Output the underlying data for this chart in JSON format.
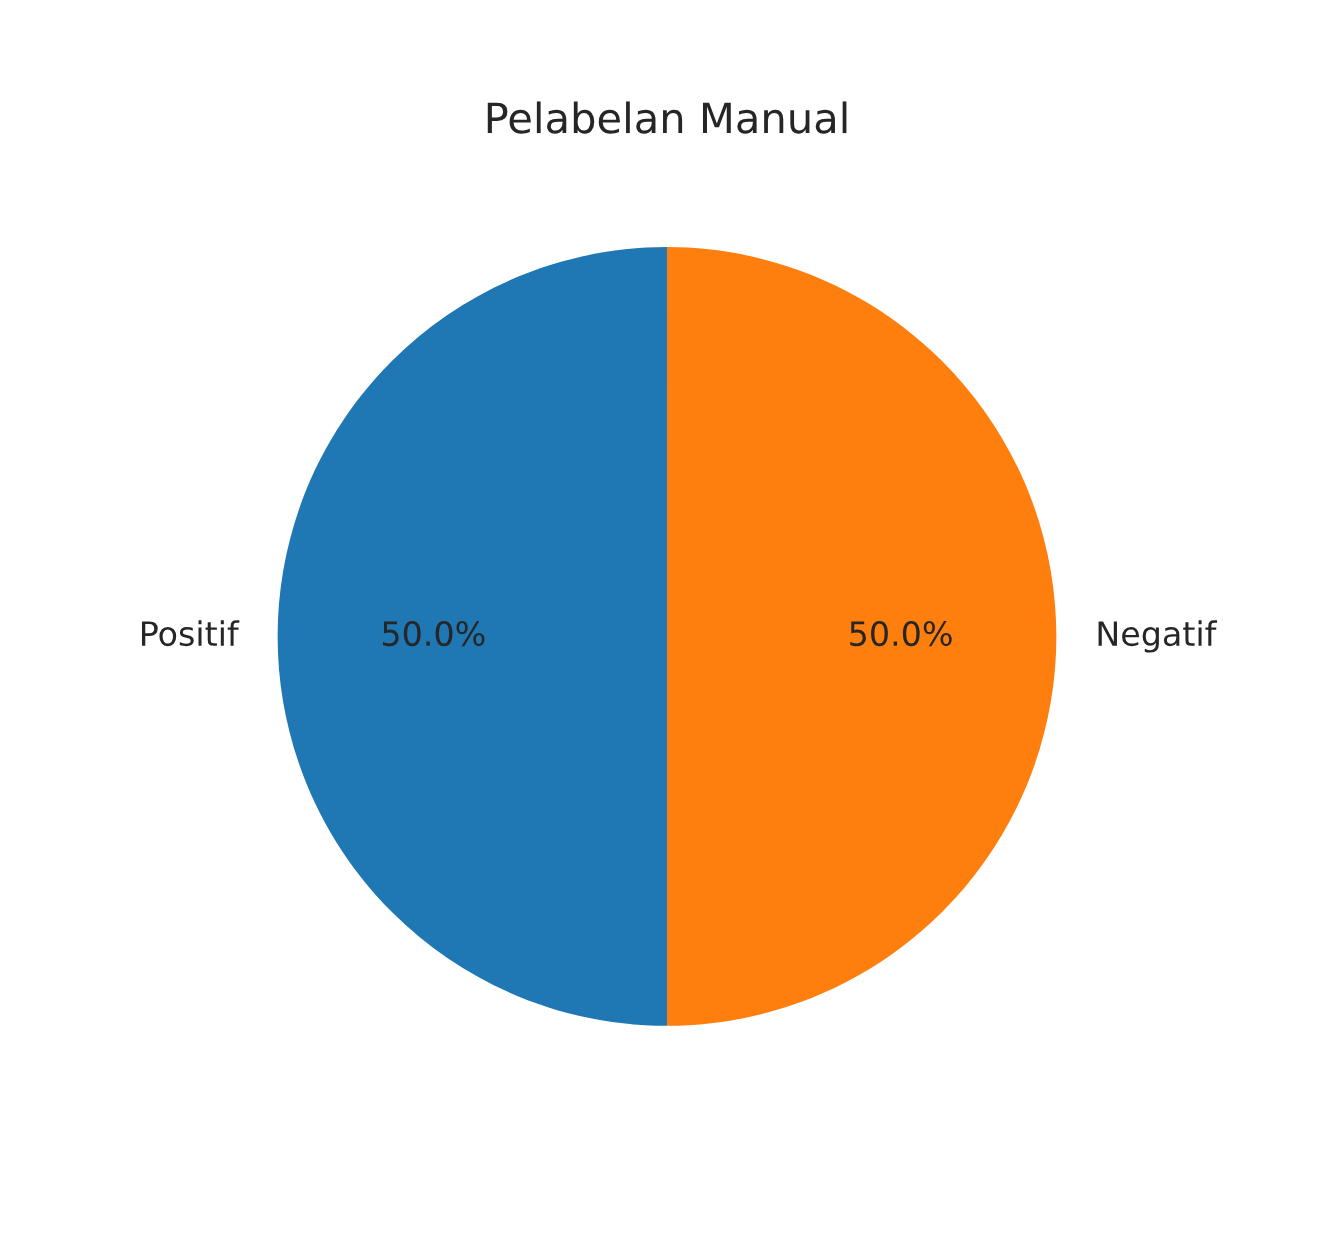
{
  "chart_data": {
    "type": "pie",
    "title": "Pelabelan Manual",
    "categories": [
      "Positif",
      "Negatif"
    ],
    "values": [
      50,
      50
    ],
    "colors": [
      "#1f77b4",
      "#ff7f0e"
    ],
    "value_labels": [
      "50.0%",
      "50.0%"
    ]
  }
}
